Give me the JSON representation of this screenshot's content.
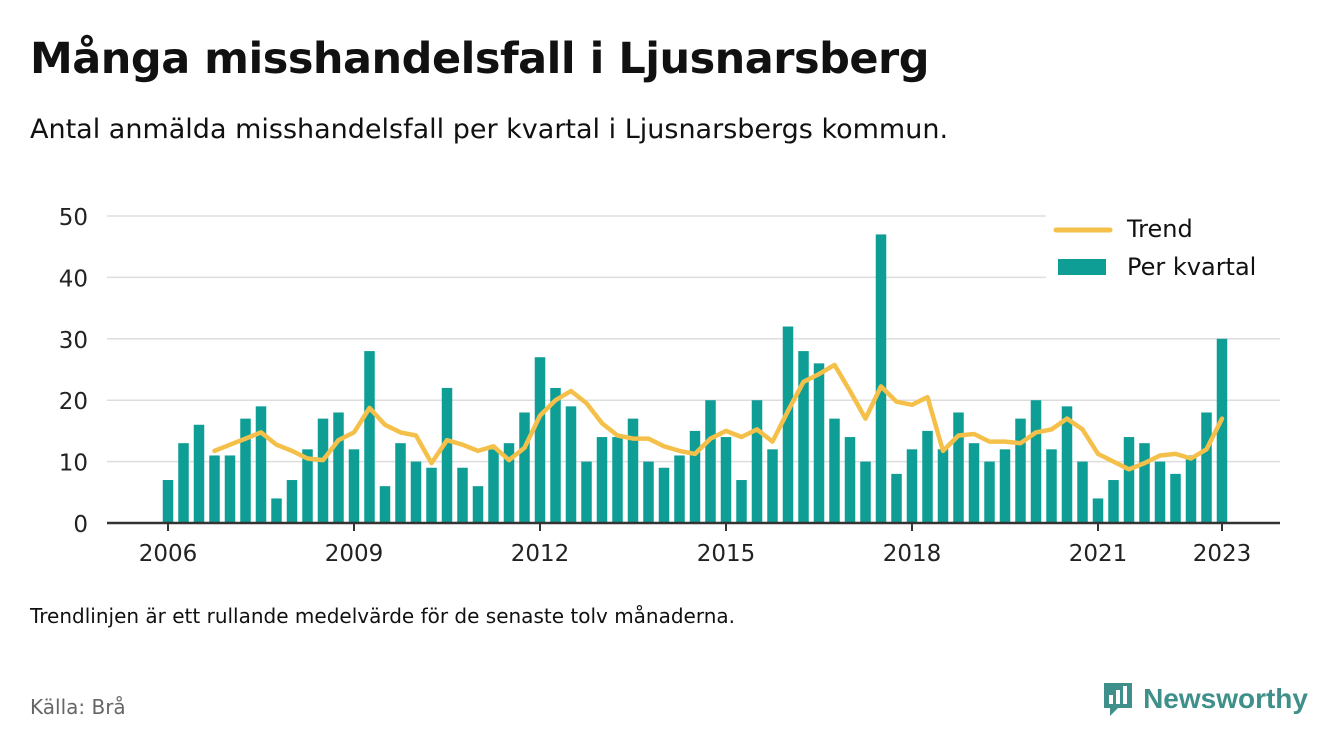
{
  "header": {
    "title": "Många misshandelsfall i Ljusnarsberg",
    "subtitle": "Antal anmälda misshandelsfall per kvartal i Ljusnarsbergs kommun."
  },
  "footer": {
    "note": "Trendlinjen är ett rullande medelvärde för de senaste tolv månaderna.",
    "source": "Källa: Brå",
    "brand": "Newsworthy"
  },
  "colors": {
    "bar": "#0f9e96",
    "trend": "#f5c04a",
    "grid": "#dddddd",
    "axis": "#333333",
    "brand": "#3f8f8a"
  },
  "chart_data": {
    "type": "bar",
    "x_start": 2006,
    "quarters_per_year": 4,
    "xticks": [
      "2006",
      "2009",
      "2012",
      "2015",
      "2018",
      "2021",
      "2023"
    ],
    "yticks": [
      0,
      10,
      20,
      30,
      40,
      50
    ],
    "ylim": [
      0,
      50
    ],
    "grid": true,
    "legend_position": "top-right",
    "series": [
      {
        "name": "Per kvartal",
        "kind": "bar",
        "values": [
          7,
          13,
          16,
          11,
          11,
          17,
          19,
          4,
          7,
          12,
          17,
          18,
          12,
          28,
          6,
          13,
          10,
          9,
          22,
          9,
          6,
          12,
          13,
          18,
          27,
          22,
          19,
          10,
          14,
          14,
          17,
          10,
          9,
          11,
          15,
          20,
          14,
          7,
          20,
          12,
          32,
          28,
          26,
          17,
          14,
          10,
          47,
          8,
          12,
          15,
          12,
          18,
          13,
          10,
          12,
          17,
          20,
          12,
          19,
          10,
          4,
          7,
          14,
          13,
          10,
          8,
          11,
          18,
          30
        ]
      },
      {
        "name": "Trend",
        "kind": "line",
        "start_index": 3,
        "values": [
          11.75,
          12.75,
          13.75,
          14.75,
          12.75,
          11.75,
          10.5,
          10.25,
          13.5,
          14.75,
          18.75,
          16,
          14.75,
          14.25,
          9.75,
          13.5,
          12.75,
          11.75,
          12.5,
          10.25,
          12.25,
          17.5,
          20,
          21.5,
          19.5,
          16.25,
          14.25,
          13.75,
          13.75,
          12.5,
          11.75,
          11.25,
          13.75,
          15,
          14,
          15.25,
          13.25,
          18.25,
          23,
          24.25,
          25.75,
          21.5,
          17,
          22.25,
          19.75,
          19.25,
          20.5,
          11.75,
          14.25,
          14.5,
          13.25,
          13.25,
          13,
          14.75,
          15.25,
          17,
          15.25,
          11.25,
          10,
          8.75,
          9.75,
          11,
          11.25,
          10.5,
          12,
          17
        ]
      }
    ]
  }
}
